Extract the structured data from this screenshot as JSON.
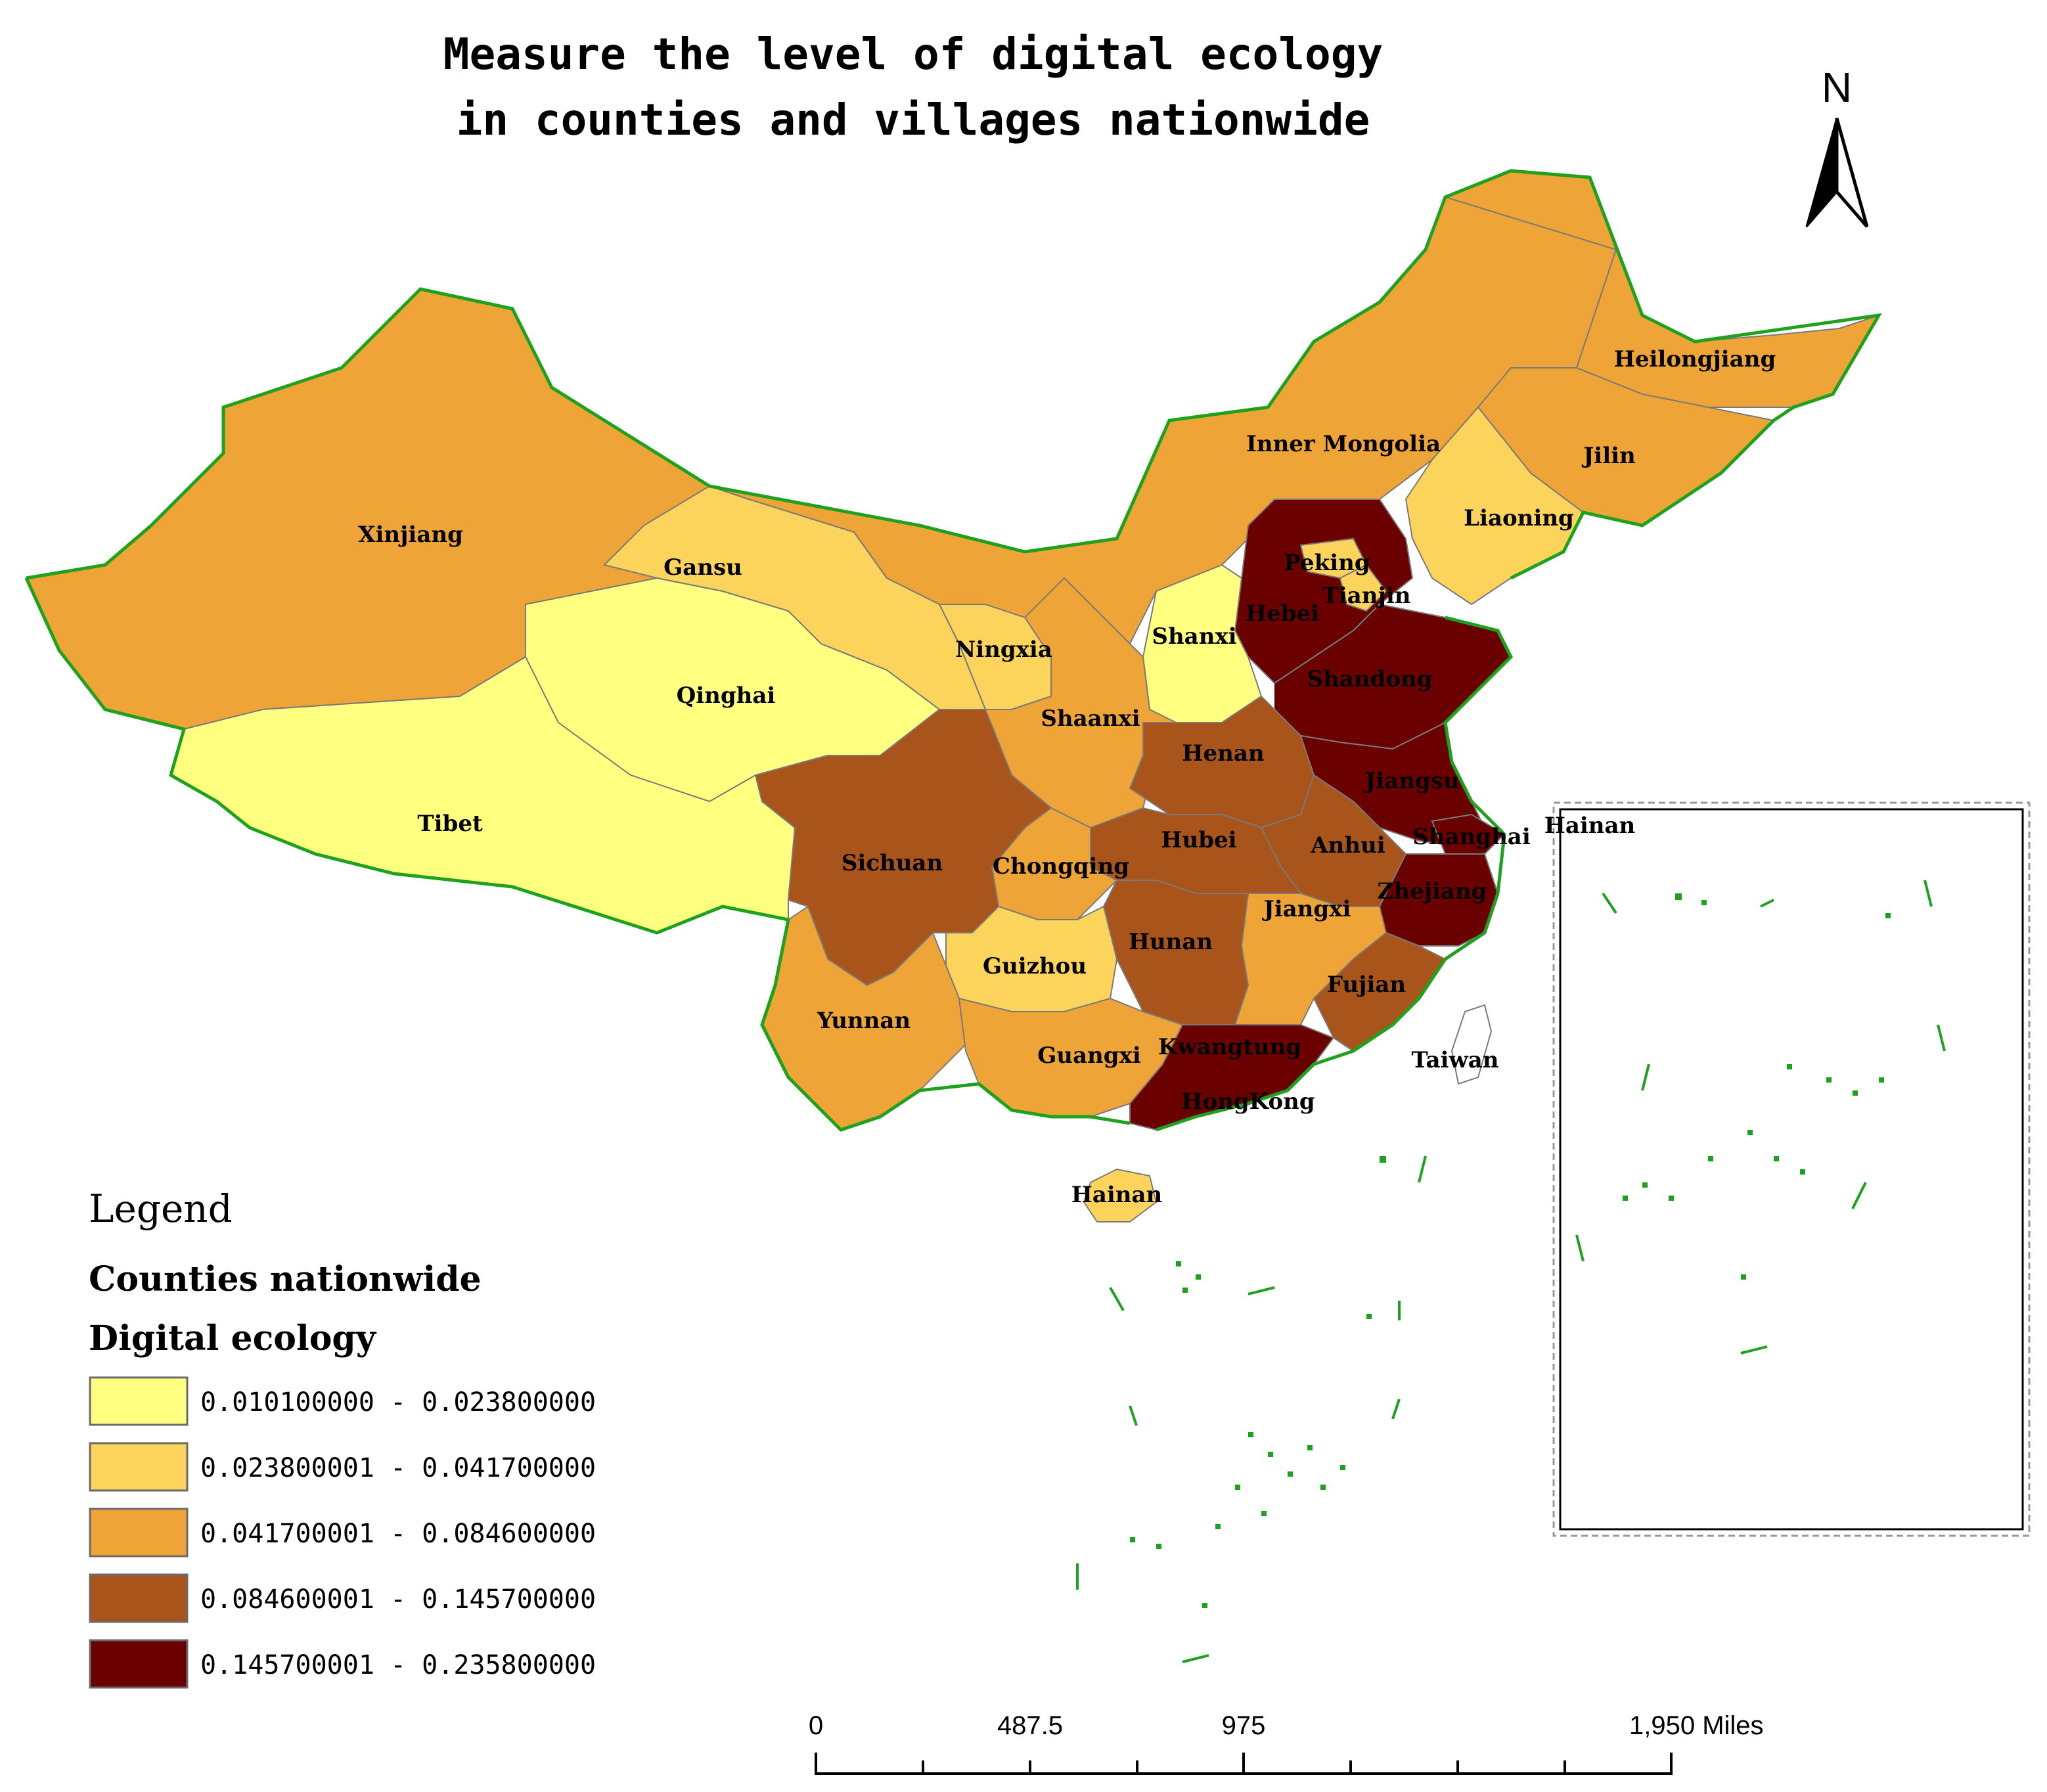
{
  "title": {
    "line1": "Measure the level of digital ecology",
    "line2": "in counties and villages nationwide"
  },
  "north_arrow": {
    "label": "N",
    "icon": "north-arrow-icon"
  },
  "legend": {
    "title": "Legend",
    "layer": "Counties nationwide",
    "field": "Digital ecology",
    "classes": [
      {
        "range": "0.010100000 - 0.023800000",
        "color": "#ffff80"
      },
      {
        "range": "0.023800001 - 0.041700000",
        "color": "#fcd35b"
      },
      {
        "range": "0.041700001 - 0.084600000",
        "color": "#eea436"
      },
      {
        "range": "0.084600001 - 0.145700000",
        "color": "#a8541a"
      },
      {
        "range": "0.145700001 - 0.235800000",
        "color": "#6b0000"
      }
    ]
  },
  "scale_bar": {
    "labels": [
      "0",
      "487.5",
      "975",
      "1,950 Miles"
    ]
  },
  "inset": {
    "label": "Hainan"
  },
  "provinces": [
    {
      "name": "Xinjiang",
      "class": 2
    },
    {
      "name": "Tibet",
      "class": 0
    },
    {
      "name": "Qinghai",
      "class": 0
    },
    {
      "name": "Gansu",
      "class": 1
    },
    {
      "name": "Inner Mongolia",
      "class": 2
    },
    {
      "name": "Heilongjiang",
      "class": 2
    },
    {
      "name": "Jilin",
      "class": 2
    },
    {
      "name": "Liaoning",
      "class": 1
    },
    {
      "name": "Peking",
      "class": 1
    },
    {
      "name": "Tianjin",
      "class": 1
    },
    {
      "name": "Hebei",
      "class": 4
    },
    {
      "name": "Shanxi",
      "class": 0
    },
    {
      "name": "Shandong",
      "class": 4
    },
    {
      "name": "Ningxia",
      "class": 1
    },
    {
      "name": "Shaanxi",
      "class": 2
    },
    {
      "name": "Henan",
      "class": 3
    },
    {
      "name": "Jiangsu",
      "class": 4
    },
    {
      "name": "Anhui",
      "class": 3
    },
    {
      "name": "Shanghai",
      "class": 4
    },
    {
      "name": "Hubei",
      "class": 3
    },
    {
      "name": "Sichuan",
      "class": 3
    },
    {
      "name": "Chongqing",
      "class": 2
    },
    {
      "name": "Zhejiang",
      "class": 4
    },
    {
      "name": "Hunan",
      "class": 3
    },
    {
      "name": "Jiangxi",
      "class": 2
    },
    {
      "name": "Guizhou",
      "class": 1
    },
    {
      "name": "Fujian",
      "class": 3
    },
    {
      "name": "Yunnan",
      "class": 2
    },
    {
      "name": "Guangxi",
      "class": 2
    },
    {
      "name": "Kwangtung",
      "class": 4
    },
    {
      "name": "HongKong",
      "class": 4
    },
    {
      "name": "Taiwan",
      "class": -1
    },
    {
      "name": "Hainan",
      "class": 1
    }
  ]
}
